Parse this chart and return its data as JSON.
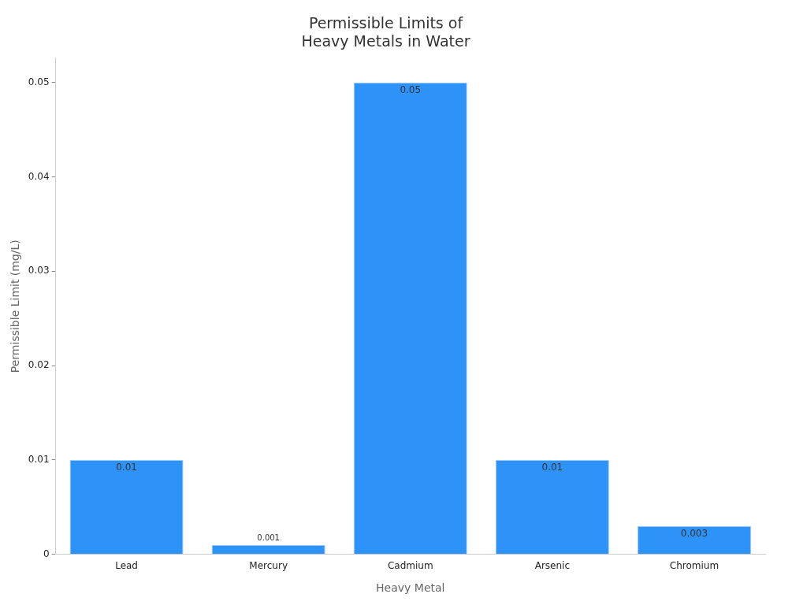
{
  "chart_data": {
    "type": "bar",
    "title": "Permissible Limits of Heavy Metals in Water",
    "xlabel": "Heavy Metal",
    "ylabel": "Permissible Limit (mg/L)",
    "categories": [
      "Lead",
      "Mercury",
      "Cadmium",
      "Arsenic",
      "Chromium"
    ],
    "values": [
      0.01,
      0.001,
      0.05,
      0.01,
      0.003
    ],
    "color": "#2e93f8",
    "ylim": [
      0,
      0.0526
    ],
    "yticks": [
      0,
      0.01,
      0.02,
      0.03,
      0.04,
      0.05
    ],
    "grid": false,
    "data_labels": true
  }
}
